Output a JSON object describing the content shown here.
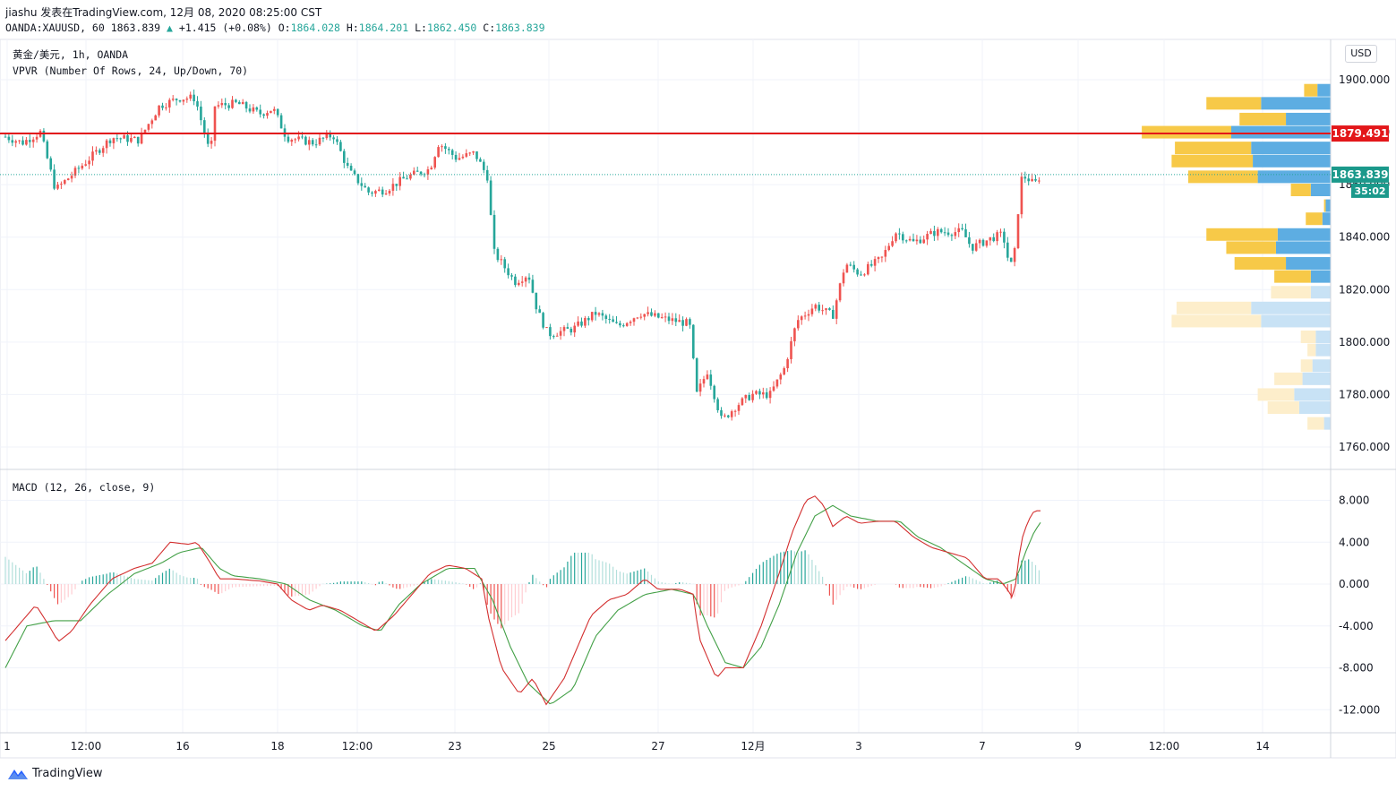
{
  "header": {
    "line1": "jiashu 发表在TradingView.com, 12月 08, 2020 08:25:00 CST",
    "symbol": "OANDA:XAUUSD, 60",
    "last": "1863.839",
    "change_arrow": "▲",
    "change": "+1.415 (+0.08%)",
    "o_label": "O:",
    "o": "1864.028",
    "h_label": "H:",
    "h": "1864.201",
    "l_label": "L:",
    "l": "1862.450",
    "c_label": "C:",
    "c": "1863.839"
  },
  "pane_labels": {
    "main": "黄金/美元, 1h, OANDA",
    "vpvr": "VPVR (Number Of Rows, 24, Up/Down, 70)",
    "macd": "MACD (12, 26, close, 9)"
  },
  "currency": "USD",
  "price_tags": {
    "line_price": "1879.491",
    "last_price": "1863.839",
    "countdown": "35:02"
  },
  "colors": {
    "up": "#ef5350",
    "down": "#26a69a",
    "line": "#e3171a",
    "macd": "#d32f2f",
    "signal": "#43a047",
    "vp_up": "#5dade2",
    "vp_down": "#f7c948"
  },
  "footer": {
    "brand": "TradingView",
    "logo_icon": "tradingview-logo-icon"
  },
  "chart_data": [
    {
      "type": "candlestick",
      "title": "黄金/美元, 1h, OANDA",
      "ylim": [
        1750,
        1910
      ],
      "y_ticks": [
        "1900.000",
        "1880.000",
        "1860.000",
        "1840.000",
        "1820.000",
        "1800.000",
        "1780.000",
        "1760.000"
      ],
      "y_tick_values": [
        1900,
        1880,
        1860,
        1840,
        1820,
        1800,
        1780,
        1760
      ],
      "x_ticks": [
        "1",
        "12:00",
        "16",
        "18",
        "12:00",
        "23",
        "25",
        "27",
        "12月",
        "3",
        "7",
        "9",
        "12:00",
        "14"
      ],
      "horizontal_line": 1879.491,
      "last_price": 1863.839,
      "path_anchors": [
        [
          0,
          1879
        ],
        [
          25,
          1876
        ],
        [
          45,
          1880
        ],
        [
          62,
          1858
        ],
        [
          100,
          1870
        ],
        [
          125,
          1878
        ],
        [
          155,
          1877
        ],
        [
          178,
          1890
        ],
        [
          200,
          1893
        ],
        [
          218,
          1893
        ],
        [
          235,
          1871
        ],
        [
          240,
          1890
        ],
        [
          265,
          1891
        ],
        [
          290,
          1887
        ],
        [
          305,
          1889
        ],
        [
          320,
          1878
        ],
        [
          350,
          1876
        ],
        [
          372,
          1879
        ],
        [
          390,
          1865
        ],
        [
          412,
          1857
        ],
        [
          430,
          1858
        ],
        [
          455,
          1863
        ],
        [
          480,
          1866
        ],
        [
          490,
          1876
        ],
        [
          510,
          1870
        ],
        [
          530,
          1872
        ],
        [
          546,
          1862
        ],
        [
          550,
          1835
        ],
        [
          575,
          1823
        ],
        [
          590,
          1826
        ],
        [
          600,
          1812
        ],
        [
          612,
          1803
        ],
        [
          640,
          1805
        ],
        [
          665,
          1811
        ],
        [
          690,
          1806
        ],
        [
          715,
          1811
        ],
        [
          740,
          1809
        ],
        [
          770,
          1807
        ],
        [
          778,
          1780
        ],
        [
          790,
          1789
        ],
        [
          806,
          1770
        ],
        [
          823,
          1776
        ],
        [
          840,
          1780
        ],
        [
          860,
          1780
        ],
        [
          876,
          1790
        ],
        [
          890,
          1808
        ],
        [
          910,
          1814
        ],
        [
          930,
          1810
        ],
        [
          944,
          1830
        ],
        [
          960,
          1826
        ],
        [
          985,
          1832
        ],
        [
          1000,
          1842
        ],
        [
          1020,
          1838
        ],
        [
          1045,
          1842
        ],
        [
          1075,
          1842
        ],
        [
          1085,
          1836
        ],
        [
          1110,
          1840
        ],
        [
          1120,
          1841
        ],
        [
          1128,
          1828
        ],
        [
          1133,
          1834
        ],
        [
          1140,
          1862
        ],
        [
          1146,
          1863
        ],
        [
          1155,
          1860
        ],
        [
          1163,
          1864
        ]
      ]
    },
    {
      "type": "bar",
      "title": "VPVR (Number Of Rows, 24, Up/Down, 70)",
      "rows_price_mid": [
        1896,
        1891,
        1885,
        1880,
        1874,
        1869,
        1863,
        1858,
        1852,
        1847,
        1841,
        1836,
        1830,
        1825,
        1819,
        1813,
        1808,
        1802,
        1797,
        1791,
        1786,
        1780,
        1775,
        1769
      ],
      "series": [
        {
          "values": [
            8,
            42,
            27,
            60,
            48,
            47,
            44,
            12,
            3,
            5,
            32,
            33,
            27,
            12,
            12,
            48,
            42,
            9,
            9,
            11,
            17,
            22,
            19,
            4
          ]
        },
        {
          "values": [
            8,
            33,
            28,
            54,
            46,
            49,
            42,
            12,
            1,
            10,
            43,
            30,
            31,
            22,
            24,
            45,
            54,
            9,
            5,
            7,
            17,
            22,
            19,
            10
          ]
        }
      ]
    },
    {
      "type": "line",
      "title": "MACD (12, 26, close, 9)",
      "ylim": [
        -13.5,
        9.5
      ],
      "y_ticks": [
        "8.000",
        "4.000",
        "0.000",
        "-4.000",
        "-8.000",
        "-12.000"
      ],
      "y_tick_values": [
        8,
        4,
        0,
        -4,
        -8,
        -12
      ],
      "macd_anchors": [
        [
          0,
          -6
        ],
        [
          40,
          -2
        ],
        [
          55,
          -4
        ],
        [
          65,
          -5.5
        ],
        [
          80,
          -4.5
        ],
        [
          100,
          -2
        ],
        [
          125,
          0.5
        ],
        [
          150,
          1.5
        ],
        [
          170,
          2
        ],
        [
          190,
          4
        ],
        [
          210,
          3.8
        ],
        [
          220,
          4
        ],
        [
          235,
          2
        ],
        [
          245,
          0.5
        ],
        [
          260,
          0.5
        ],
        [
          290,
          0.3
        ],
        [
          310,
          0
        ],
        [
          325,
          -1.5
        ],
        [
          345,
          -2.5
        ],
        [
          360,
          -2
        ],
        [
          380,
          -2.5
        ],
        [
          400,
          -3.5
        ],
        [
          420,
          -4.5
        ],
        [
          440,
          -3
        ],
        [
          460,
          -1
        ],
        [
          480,
          1
        ],
        [
          500,
          1.8
        ],
        [
          520,
          1.5
        ],
        [
          538,
          0.5
        ],
        [
          545,
          -3
        ],
        [
          560,
          -8
        ],
        [
          580,
          -10.5
        ],
        [
          595,
          -9
        ],
        [
          610,
          -11.5
        ],
        [
          630,
          -9
        ],
        [
          660,
          -3
        ],
        [
          680,
          -1.5
        ],
        [
          700,
          -1
        ],
        [
          720,
          0.5
        ],
        [
          735,
          -0.5
        ],
        [
          760,
          -0.5
        ],
        [
          775,
          -1
        ],
        [
          780,
          -5
        ],
        [
          800,
          -9
        ],
        [
          810,
          -8
        ],
        [
          830,
          -8
        ],
        [
          850,
          -4
        ],
        [
          870,
          1
        ],
        [
          885,
          5
        ],
        [
          900,
          8
        ],
        [
          910,
          8.4
        ],
        [
          920,
          7.5
        ],
        [
          930,
          5.5
        ],
        [
          945,
          6.5
        ],
        [
          960,
          5.8
        ],
        [
          980,
          6
        ],
        [
          1000,
          6
        ],
        [
          1020,
          4.5
        ],
        [
          1040,
          3.5
        ],
        [
          1060,
          3
        ],
        [
          1080,
          2.5
        ],
        [
          1100,
          0.5
        ],
        [
          1115,
          0.5
        ],
        [
          1125,
          -0.5
        ],
        [
          1132,
          -1.5
        ],
        [
          1140,
          4
        ],
        [
          1148,
          6
        ],
        [
          1155,
          7
        ],
        [
          1163,
          7
        ]
      ],
      "signal_anchors": [
        [
          0,
          -9
        ],
        [
          30,
          -4
        ],
        [
          60,
          -3.5
        ],
        [
          90,
          -3.5
        ],
        [
          120,
          -1
        ],
        [
          150,
          1
        ],
        [
          180,
          2
        ],
        [
          200,
          3
        ],
        [
          225,
          3.5
        ],
        [
          245,
          1.5
        ],
        [
          260,
          0.8
        ],
        [
          290,
          0.5
        ],
        [
          320,
          0
        ],
        [
          345,
          -1.5
        ],
        [
          375,
          -2.5
        ],
        [
          405,
          -4
        ],
        [
          425,
          -4.5
        ],
        [
          445,
          -2
        ],
        [
          470,
          0
        ],
        [
          500,
          1.5
        ],
        [
          530,
          1.5
        ],
        [
          550,
          -1.5
        ],
        [
          570,
          -6
        ],
        [
          590,
          -9.5
        ],
        [
          615,
          -11.5
        ],
        [
          640,
          -10
        ],
        [
          665,
          -5
        ],
        [
          690,
          -2.5
        ],
        [
          720,
          -1
        ],
        [
          750,
          -0.5
        ],
        [
          775,
          -1
        ],
        [
          790,
          -4
        ],
        [
          810,
          -7.5
        ],
        [
          830,
          -8
        ],
        [
          850,
          -6
        ],
        [
          870,
          -2
        ],
        [
          890,
          3
        ],
        [
          910,
          6.5
        ],
        [
          930,
          7.5
        ],
        [
          950,
          6.5
        ],
        [
          980,
          6
        ],
        [
          1005,
          6
        ],
        [
          1025,
          4.5
        ],
        [
          1050,
          3.5
        ],
        [
          1075,
          2
        ],
        [
          1100,
          0.5
        ],
        [
          1120,
          0
        ],
        [
          1135,
          0.5
        ],
        [
          1145,
          3
        ],
        [
          1155,
          5
        ],
        [
          1163,
          6
        ]
      ]
    }
  ]
}
